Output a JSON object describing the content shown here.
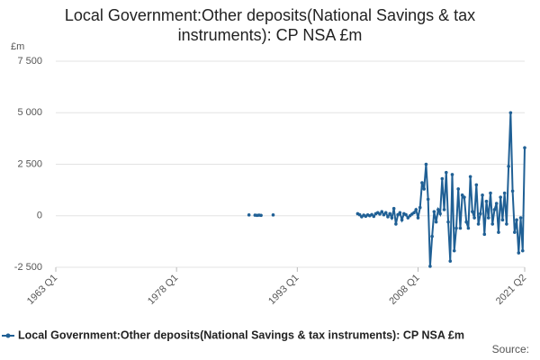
{
  "chart_data": {
    "type": "line",
    "title": "Local Government:Other deposits(National Savings & tax instruments): CP NSA £m",
    "y_unit": "£m",
    "source": "Source:",
    "x": [
      "1987 Q1",
      "1987 Q2",
      "1987 Q4",
      "1988 Q1",
      "1988 Q2",
      "1988 Q3",
      "1988 Q4",
      "1990 Q1",
      "1990 Q2",
      "2000 Q3",
      "2000 Q4",
      "2001 Q1",
      "2001 Q2",
      "2001 Q3",
      "2001 Q4",
      "2002 Q1",
      "2002 Q2",
      "2002 Q3",
      "2002 Q4",
      "2003 Q1",
      "2003 Q2",
      "2003 Q3",
      "2003 Q4",
      "2004 Q1",
      "2004 Q2",
      "2004 Q3",
      "2004 Q4",
      "2005 Q1",
      "2005 Q2",
      "2005 Q3",
      "2005 Q4",
      "2006 Q1",
      "2006 Q2",
      "2006 Q3",
      "2006 Q4",
      "2007 Q1",
      "2007 Q2",
      "2007 Q3",
      "2007 Q4",
      "2008 Q1",
      "2008 Q2",
      "2008 Q3",
      "2008 Q4",
      "2009 Q1",
      "2009 Q2",
      "2009 Q3",
      "2009 Q4",
      "2010 Q1",
      "2010 Q2",
      "2010 Q3",
      "2010 Q4",
      "2011 Q1",
      "2011 Q2",
      "2011 Q3",
      "2011 Q4",
      "2012 Q1",
      "2012 Q2",
      "2012 Q3",
      "2012 Q4",
      "2013 Q1",
      "2013 Q2",
      "2013 Q3",
      "2013 Q4",
      "2014 Q1",
      "2014 Q2",
      "2014 Q3",
      "2014 Q4",
      "2015 Q1",
      "2015 Q2",
      "2015 Q3",
      "2015 Q4",
      "2016 Q1",
      "2016 Q2",
      "2016 Q3",
      "2016 Q4",
      "2017 Q1",
      "2017 Q2",
      "2017 Q3",
      "2017 Q4",
      "2018 Q1",
      "2018 Q2",
      "2018 Q3",
      "2018 Q4",
      "2019 Q1",
      "2019 Q2",
      "2019 Q3",
      "2019 Q4",
      "2020 Q1",
      "2020 Q2",
      "2020 Q3",
      "2020 Q4",
      "2021 Q1",
      "2021 Q2"
    ],
    "series": [
      {
        "name": "Local Government:Other deposits(National Savings & tax instruments): CP NSA £m",
        "color": "#206095",
        "values": [
          40,
          null,
          30,
          20,
          30,
          20,
          null,
          40,
          null,
          100,
          50,
          -50,
          30,
          -20,
          40,
          0,
          60,
          -30,
          100,
          150,
          80,
          200,
          50,
          150,
          -50,
          100,
          -100,
          350,
          -400,
          50,
          150,
          -200,
          100,
          50,
          -100,
          0,
          80,
          150,
          300,
          -100,
          400,
          1600,
          1300,
          2500,
          800,
          -2450,
          -1000,
          200,
          -300,
          300,
          100,
          1800,
          300,
          2100,
          -300,
          -2200,
          2000,
          -1700,
          -600,
          1300,
          -600,
          1000,
          900,
          -300,
          -600,
          1900,
          200,
          -100,
          1500,
          -400,
          100,
          1000,
          -900,
          700,
          -100,
          1100,
          -400,
          300,
          600,
          -800,
          900,
          -200,
          1100,
          -400,
          2400,
          5000,
          1200,
          -800,
          -200,
          -1800,
          -100,
          -1700,
          3300
        ]
      }
    ],
    "xlim": [
      "1963 Q1",
      "2021 Q2"
    ],
    "xticks": [
      "1963 Q1",
      "1978 Q1",
      "1993 Q1",
      "2008 Q1",
      "2021 Q2"
    ],
    "ylim": [
      -2500,
      7500
    ],
    "yticks": [
      {
        "value": -2500,
        "label": "-2 500"
      },
      0,
      {
        "value": 2500,
        "label": "2 500"
      },
      {
        "value": 5000,
        "label": "5 000"
      },
      {
        "value": 7500,
        "label": "7 500"
      }
    ],
    "grid": true
  }
}
